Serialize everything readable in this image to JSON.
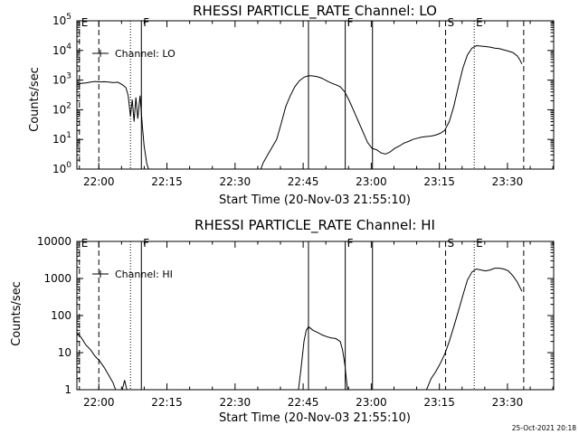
{
  "figure": {
    "stamp": "25-Oct-2021 20:18"
  },
  "chart_data": [
    {
      "type": "line",
      "title": "RHESSI PARTICLE_RATE Channel: LO",
      "xlabel": "Start Time (20-Nov-03 21:55:10)",
      "ylabel": "Counts/sec",
      "x_unit": "minutes since 21:55:10",
      "xlim": [
        0,
        105
      ],
      "x_ticks": [
        {
          "value": 4.83,
          "label": "22:00"
        },
        {
          "value": 19.83,
          "label": "22:15"
        },
        {
          "value": 34.83,
          "label": "22:30"
        },
        {
          "value": 49.83,
          "label": "22:45"
        },
        {
          "value": 64.83,
          "label": "23:00"
        },
        {
          "value": 79.83,
          "label": "23:15"
        },
        {
          "value": 94.83,
          "label": "23:30"
        }
      ],
      "y_scale": "log",
      "ylim": [
        1,
        100000
      ],
      "y_ticks": [
        {
          "value": 1,
          "label": "10^0"
        },
        {
          "value": 10,
          "label": "10^1"
        },
        {
          "value": 100,
          "label": "10^2"
        },
        {
          "value": 1000,
          "label": "10^3"
        },
        {
          "value": 10000,
          "label": "10^4"
        },
        {
          "value": 100000,
          "label": "10^5"
        }
      ],
      "legend": {
        "label": "Channel: LO",
        "position": "top-left"
      },
      "markers": [
        {
          "x": 0.55,
          "label": "E",
          "style": "dashed"
        },
        {
          "x": 4.83,
          "label": "",
          "style": "dashed"
        },
        {
          "x": 11.8,
          "label": "",
          "style": "dotted"
        },
        {
          "x": 14.2,
          "label": "F",
          "style": "solid"
        },
        {
          "x": 51.0,
          "label": "",
          "style": "solid"
        },
        {
          "x": 59.1,
          "label": "F",
          "style": "solid"
        },
        {
          "x": 65.1,
          "label": "",
          "style": "solid"
        },
        {
          "x": 81.2,
          "label": "S",
          "style": "dashed"
        },
        {
          "x": 87.5,
          "label": "E",
          "style": "dotted"
        },
        {
          "x": 98.4,
          "label": "",
          "style": "dashed"
        }
      ],
      "series": [
        {
          "segments": [
            [
              [
                0,
                700
              ],
              [
                1,
                780
              ],
              [
                2,
                800
              ],
              [
                3,
                860
              ],
              [
                4,
                900
              ],
              [
                5,
                870
              ],
              [
                6,
                880
              ],
              [
                7,
                860
              ],
              [
                8,
                820
              ],
              [
                9,
                850
              ],
              [
                10,
                700
              ],
              [
                10.8,
                560
              ],
              [
                11.3,
                300
              ],
              [
                11.8,
                60
              ],
              [
                12.2,
                220
              ],
              [
                12.6,
                40
              ],
              [
                13,
                260
              ],
              [
                13.4,
                50
              ],
              [
                13.9,
                300
              ],
              [
                14.4,
                30
              ],
              [
                14.8,
                6
              ],
              [
                15.4,
                1.5
              ],
              [
                15.8,
                1
              ]
            ],
            [
              [
                40.5,
                1
              ],
              [
                41,
                1.6
              ],
              [
                42,
                3
              ],
              [
                43,
                5.5
              ],
              [
                44,
                10
              ],
              [
                45,
                35
              ],
              [
                46,
                130
              ],
              [
                47,
                300
              ],
              [
                48,
                600
              ],
              [
                49,
                950
              ],
              [
                50,
                1250
              ],
              [
                51,
                1400
              ],
              [
                52,
                1380
              ],
              [
                53,
                1300
              ],
              [
                54,
                1150
              ],
              [
                55,
                950
              ],
              [
                56,
                800
              ],
              [
                57,
                700
              ],
              [
                58,
                600
              ],
              [
                59,
                400
              ],
              [
                60,
                200
              ],
              [
                61,
                90
              ],
              [
                62,
                40
              ],
              [
                63,
                18
              ],
              [
                64,
                8
              ],
              [
                65,
                5
              ],
              [
                66,
                4.5
              ],
              [
                67,
                3.5
              ],
              [
                68,
                3.2
              ],
              [
                69,
                3.8
              ],
              [
                70,
                5
              ],
              [
                71,
                6
              ],
              [
                72,
                7.5
              ],
              [
                73,
                8.5
              ],
              [
                74,
                10
              ],
              [
                75,
                11
              ],
              [
                76,
                12
              ],
              [
                77,
                12.5
              ],
              [
                78,
                13
              ],
              [
                79,
                14
              ],
              [
                80,
                16
              ],
              [
                81,
                20
              ],
              [
                82,
                40
              ],
              [
                83,
                130
              ],
              [
                84,
                600
              ],
              [
                85,
                2500
              ],
              [
                86,
                7000
              ],
              [
                87,
                12000
              ],
              [
                88,
                14500
              ],
              [
                89,
                14000
              ],
              [
                90,
                13500
              ],
              [
                91,
                13000
              ],
              [
                92,
                12000
              ],
              [
                93,
                11500
              ],
              [
                94,
                10500
              ],
              [
                95,
                9500
              ],
              [
                96,
                8500
              ],
              [
                97,
                6500
              ],
              [
                97.5,
                5000
              ],
              [
                98,
                3500
              ]
            ]
          ]
        }
      ]
    },
    {
      "type": "line",
      "title": "RHESSI PARTICLE_RATE Channel: HI",
      "xlabel": "Start Time (20-Nov-03 21:55:10)",
      "ylabel": "Counts/sec",
      "x_unit": "minutes since 21:55:10",
      "xlim": [
        0,
        105
      ],
      "x_ticks": [
        {
          "value": 4.83,
          "label": "22:00"
        },
        {
          "value": 19.83,
          "label": "22:15"
        },
        {
          "value": 34.83,
          "label": "22:30"
        },
        {
          "value": 49.83,
          "label": "22:45"
        },
        {
          "value": 64.83,
          "label": "23:00"
        },
        {
          "value": 79.83,
          "label": "23:15"
        },
        {
          "value": 94.83,
          "label": "23:30"
        }
      ],
      "y_scale": "log",
      "ylim": [
        1,
        10000
      ],
      "y_ticks": [
        {
          "value": 1,
          "label": "1"
        },
        {
          "value": 10,
          "label": "10"
        },
        {
          "value": 100,
          "label": "100"
        },
        {
          "value": 1000,
          "label": "1000"
        },
        {
          "value": 10000,
          "label": "10000"
        }
      ],
      "legend": {
        "label": "Channel: HI",
        "position": "top-left"
      },
      "markers": [
        {
          "x": 0.55,
          "label": "E",
          "style": "dashed"
        },
        {
          "x": 4.83,
          "label": "",
          "style": "dashed"
        },
        {
          "x": 11.8,
          "label": "",
          "style": "dotted"
        },
        {
          "x": 14.2,
          "label": "F",
          "style": "solid"
        },
        {
          "x": 51.0,
          "label": "",
          "style": "solid"
        },
        {
          "x": 59.1,
          "label": "F",
          "style": "solid"
        },
        {
          "x": 65.1,
          "label": "",
          "style": "solid"
        },
        {
          "x": 81.2,
          "label": "S",
          "style": "dashed"
        },
        {
          "x": 87.5,
          "label": "E",
          "style": "dotted"
        },
        {
          "x": 98.4,
          "label": "",
          "style": "dashed"
        }
      ],
      "series": [
        {
          "segments": [
            [
              [
                0,
                35
              ],
              [
                1,
                25
              ],
              [
                2,
                16
              ],
              [
                3,
                12
              ],
              [
                4,
                8
              ],
              [
                5,
                6
              ],
              [
                6,
                4
              ],
              [
                7,
                2.5
              ],
              [
                8,
                1.5
              ],
              [
                8.5,
                1
              ]
            ],
            [
              [
                10,
                1
              ],
              [
                10.5,
                1.8
              ],
              [
                11,
                1
              ]
            ],
            [
              [
                48.8,
                1
              ],
              [
                49.4,
                4
              ],
              [
                50,
                20
              ],
              [
                50.5,
                40
              ],
              [
                51,
                50
              ],
              [
                52,
                40
              ],
              [
                53,
                35
              ],
              [
                54,
                30
              ],
              [
                55,
                27
              ],
              [
                56,
                25
              ],
              [
                57,
                24
              ],
              [
                58,
                20
              ],
              [
                58.5,
                12
              ],
              [
                59,
                5
              ],
              [
                59.6,
                1
              ]
            ],
            [
              [
                77,
                1
              ],
              [
                78,
                2
              ],
              [
                79,
                3
              ],
              [
                80,
                5
              ],
              [
                81,
                9
              ],
              [
                82,
                20
              ],
              [
                83,
                50
              ],
              [
                84,
                130
              ],
              [
                85,
                350
              ],
              [
                86,
                900
              ],
              [
                87,
                1500
              ],
              [
                88,
                1800
              ],
              [
                89,
                1700
              ],
              [
                90,
                1600
              ],
              [
                91,
                1700
              ],
              [
                92,
                1900
              ],
              [
                93,
                1900
              ],
              [
                94,
                1800
              ],
              [
                95,
                1600
              ],
              [
                96,
                1200
              ],
              [
                97,
                800
              ],
              [
                98,
                450
              ]
            ]
          ]
        }
      ]
    }
  ]
}
